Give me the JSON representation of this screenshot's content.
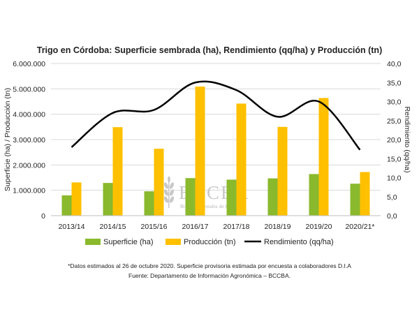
{
  "chart_data": {
    "type": "bar",
    "title": "Trigo en Córdoba: Superficie sembrada (ha), Rendimiento (qq/ha) y Producción (tn)",
    "categories": [
      "2013/14",
      "2014/15",
      "2015/16",
      "2016/17",
      "2017/18",
      "2018/19",
      "2019/20",
      "2020/21*"
    ],
    "series": [
      {
        "name": "Superficie (ha)",
        "type": "bar",
        "axis": "left",
        "color": "#8ab92d",
        "values": [
          800000,
          1290000,
          960000,
          1480000,
          1420000,
          1470000,
          1640000,
          1260000
        ]
      },
      {
        "name": "Producción (tn)",
        "type": "bar",
        "axis": "left",
        "color": "#ffc000",
        "values": [
          1310000,
          3490000,
          2640000,
          5090000,
          4420000,
          3500000,
          4640000,
          1720000
        ]
      },
      {
        "name": "Rendimiento (qq/ha)",
        "type": "line",
        "axis": "right",
        "color": "#000000",
        "values": [
          18.0,
          27.0,
          27.8,
          35.0,
          33.0,
          26.0,
          30.0,
          17.3
        ]
      }
    ],
    "ylabel_left": "Superficie (ha) / Producción (tn)",
    "ylabel_right": "Rendimiento (qq/ha)",
    "ylim_left": [
      0,
      6000000
    ],
    "ylim_right": [
      0,
      40
    ],
    "yticks_left": [
      "0",
      "1.000.000",
      "2.000.000",
      "3.000.000",
      "4.000.000",
      "5.000.000",
      "6.000.000"
    ],
    "yticks_right": [
      "0,0",
      "5,0",
      "10,0",
      "15,0",
      "20,0",
      "25,0",
      "30,0",
      "35,0",
      "40,0"
    ],
    "grid": true,
    "legend_position": "bottom"
  },
  "watermark": {
    "logo": "BCCBA",
    "subtitle": "Bolsa de Cereales de Córdoba"
  },
  "footnotes": [
    "*Datos estimados al 26 de octubre 2020. Superficie provisoria estimada por encuesta a colaboradores D.I.A",
    "Fuente: Departamento de Información Agronómica – BCCBA."
  ]
}
